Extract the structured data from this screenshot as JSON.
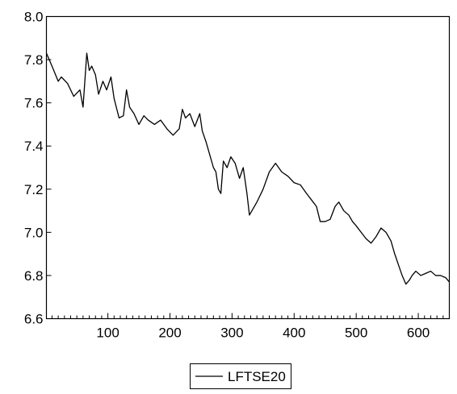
{
  "chart_data": {
    "type": "line",
    "title": "",
    "xlabel": "",
    "ylabel": "",
    "xlim": [
      1,
      650
    ],
    "ylim": [
      6.6,
      8.0
    ],
    "x_ticks": [
      100,
      200,
      300,
      400,
      500,
      600
    ],
    "y_ticks": [
      6.6,
      6.8,
      7.0,
      7.2,
      7.4,
      7.6,
      7.8,
      8.0
    ],
    "y_tick_labels": [
      "6.6",
      "6.8",
      "7.0",
      "7.2",
      "7.4",
      "7.6",
      "7.8",
      "8.0"
    ],
    "grid": false,
    "legend": {
      "position": "bottom-center"
    },
    "series": [
      {
        "name": "LFTSE20",
        "color": "#000000",
        "x": [
          1,
          10,
          20,
          25,
          35,
          45,
          55,
          60,
          66,
          70,
          74,
          80,
          85,
          92,
          98,
          105,
          110,
          118,
          125,
          130,
          135,
          142,
          150,
          158,
          165,
          175,
          185,
          195,
          205,
          215,
          220,
          225,
          232,
          240,
          248,
          252,
          258,
          265,
          270,
          274,
          278,
          282,
          286,
          292,
          298,
          305,
          312,
          318,
          324,
          328,
          332,
          340,
          350,
          360,
          370,
          380,
          390,
          400,
          410,
          420,
          428,
          436,
          442,
          450,
          458,
          466,
          472,
          480,
          488,
          494,
          500,
          508,
          516,
          524,
          532,
          540,
          548,
          556,
          562,
          568,
          574,
          580,
          586,
          590,
          596,
          604,
          612,
          620,
          628,
          636,
          644,
          650
        ],
        "y": [
          7.83,
          7.77,
          7.7,
          7.72,
          7.69,
          7.63,
          7.66,
          7.58,
          7.83,
          7.75,
          7.77,
          7.73,
          7.64,
          7.7,
          7.66,
          7.72,
          7.62,
          7.53,
          7.54,
          7.66,
          7.58,
          7.55,
          7.5,
          7.54,
          7.52,
          7.5,
          7.52,
          7.48,
          7.45,
          7.48,
          7.57,
          7.53,
          7.55,
          7.49,
          7.55,
          7.47,
          7.42,
          7.35,
          7.3,
          7.28,
          7.2,
          7.18,
          7.33,
          7.3,
          7.35,
          7.32,
          7.25,
          7.3,
          7.18,
          7.08,
          7.1,
          7.14,
          7.2,
          7.28,
          7.32,
          7.28,
          7.26,
          7.23,
          7.22,
          7.18,
          7.15,
          7.12,
          7.05,
          7.05,
          7.06,
          7.12,
          7.14,
          7.1,
          7.08,
          7.05,
          7.03,
          7.0,
          6.97,
          6.95,
          6.98,
          7.02,
          7.0,
          6.96,
          6.9,
          6.85,
          6.8,
          6.76,
          6.78,
          6.8,
          6.82,
          6.8,
          6.81,
          6.82,
          6.8,
          6.8,
          6.79,
          6.77
        ]
      }
    ]
  }
}
